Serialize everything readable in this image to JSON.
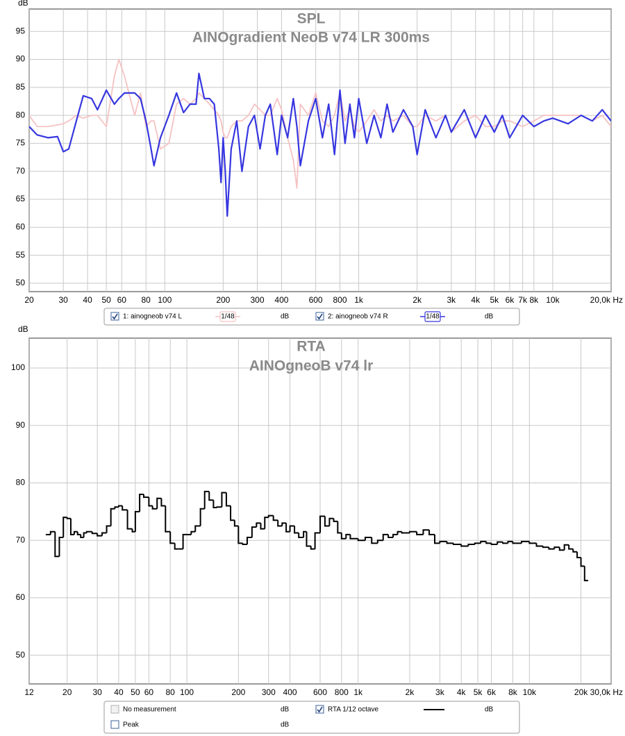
{
  "chart_data": [
    {
      "type": "line",
      "title": "SPL",
      "subtitle": "AINOgradient NeoB v74 LR 300ms",
      "y_label": "dB",
      "unit": "dB",
      "log_x": true,
      "grid": true,
      "xlim": [
        20,
        20000
      ],
      "ylim": [
        48.5,
        99
      ],
      "xticks": [
        20,
        30,
        40,
        50,
        60,
        80,
        100,
        200,
        300,
        400,
        600,
        800,
        {
          "value": 1000,
          "label": "1k"
        },
        {
          "value": 2000,
          "label": "2k"
        },
        {
          "value": 3000,
          "label": "3k"
        },
        {
          "value": 4000,
          "label": "4k"
        },
        {
          "value": 5000,
          "label": "5k"
        },
        {
          "value": 6000,
          "label": "6k"
        },
        {
          "value": 7000,
          "label": "7k"
        },
        {
          "value": 8000,
          "label": "8k"
        },
        {
          "value": 10000,
          "label": "10k"
        },
        {
          "value": 20000,
          "label": "20,0k Hz"
        }
      ],
      "yticks": [
        50,
        55,
        60,
        65,
        70,
        75,
        80,
        85,
        90,
        95
      ],
      "x": [
        20,
        22,
        25,
        28,
        30,
        32,
        35,
        38,
        42,
        45,
        50,
        55,
        58,
        62,
        70,
        75,
        80,
        85,
        88,
        95,
        105,
        115,
        125,
        135,
        145,
        150,
        160,
        170,
        180,
        190,
        195,
        200,
        205,
        210,
        220,
        235,
        250,
        270,
        290,
        310,
        330,
        350,
        380,
        400,
        430,
        460,
        480,
        500,
        550,
        600,
        650,
        700,
        750,
        800,
        850,
        900,
        950,
        1000,
        1100,
        1200,
        1300,
        1400,
        1500,
        1700,
        1900,
        2000,
        2200,
        2500,
        2800,
        3000,
        3500,
        4000,
        4500,
        5000,
        5500,
        6000,
        7000,
        8000,
        9000,
        10000,
        12000,
        14000,
        16000,
        18000,
        20000
      ],
      "series": [
        {
          "name": "1: ainogneob v74 L",
          "smoothing": "1/48",
          "color": "#f6c2c2",
          "values": [
            80,
            78,
            78,
            78.3,
            78.5,
            79,
            80,
            79.5,
            80,
            80,
            78,
            87,
            90,
            87,
            80,
            84,
            78,
            79,
            79,
            74,
            75,
            82,
            83,
            82,
            83,
            84,
            83,
            82,
            81,
            80,
            79,
            77,
            76,
            76,
            78,
            79,
            79,
            80,
            82,
            81,
            80,
            80,
            83,
            81,
            76,
            72,
            67,
            82,
            80,
            84,
            79,
            78,
            80,
            84,
            79,
            81,
            78,
            77,
            79,
            81,
            79,
            80,
            79,
            80,
            78,
            78,
            80,
            79,
            80,
            77,
            79,
            80,
            78,
            78,
            79,
            79,
            78,
            79,
            80,
            80,
            80,
            80,
            79,
            80,
            78
          ]
        },
        {
          "name": "2: ainogneob v74 R",
          "smoothing": "1/48",
          "color": "#3636e0",
          "values": [
            78,
            76.5,
            76,
            76.2,
            73.5,
            74,
            79,
            83.5,
            83,
            81,
            84.5,
            82,
            83,
            84,
            84,
            83,
            79,
            74,
            71,
            76,
            80,
            84,
            80.5,
            82,
            82,
            87.5,
            83,
            83,
            82,
            74,
            68,
            76,
            70,
            62,
            74,
            79,
            70,
            78,
            80,
            74,
            80,
            82,
            73,
            80,
            76,
            83,
            78,
            71,
            79,
            83,
            76,
            82,
            73,
            84.5,
            75,
            82,
            76,
            83,
            75,
            80,
            76,
            82,
            77,
            81,
            78,
            73,
            81,
            76,
            80,
            77,
            81,
            76,
            80,
            77,
            80,
            76,
            80,
            78,
            79,
            79.5,
            78.5,
            80,
            79,
            81,
            79
          ]
        }
      ]
    },
    {
      "type": "step",
      "title": "RTA",
      "subtitle": "AINOgneoB v74 lr",
      "y_label": "dB",
      "unit": "dB",
      "log_x": true,
      "grid": true,
      "xlim": [
        12,
        30000
      ],
      "ylim": [
        45,
        105.2
      ],
      "xticks": [
        12,
        20,
        30,
        40,
        50,
        60,
        80,
        100,
        200,
        300,
        400,
        600,
        800,
        {
          "value": 1000,
          "label": "1k"
        },
        {
          "value": 2000,
          "label": "2k"
        },
        {
          "value": 3000,
          "label": "3k"
        },
        {
          "value": 4000,
          "label": "4k"
        },
        {
          "value": 5000,
          "label": "5k"
        },
        {
          "value": 6000,
          "label": "6k"
        },
        {
          "value": 8000,
          "label": "8k"
        },
        {
          "value": 10000,
          "label": "10k"
        },
        {
          "value": 20000,
          "label": "20k"
        },
        {
          "value": 30000,
          "label": "30,0k Hz"
        }
      ],
      "yticks": [
        50,
        60,
        70,
        80,
        90,
        100
      ],
      "x": [
        15,
        16,
        17,
        18,
        19,
        20,
        21,
        22,
        23,
        24,
        25,
        26,
        28,
        30,
        32,
        34,
        36,
        38,
        40,
        42,
        45,
        48,
        50,
        53,
        56,
        60,
        63,
        67,
        71,
        75,
        80,
        85,
        90,
        95,
        100,
        106,
        112,
        120,
        127,
        135,
        143,
        150,
        160,
        170,
        180,
        190,
        200,
        212,
        225,
        240,
        255,
        270,
        285,
        300,
        320,
        340,
        360,
        380,
        400,
        425,
        450,
        480,
        500,
        530,
        560,
        600,
        640,
        680,
        720,
        760,
        800,
        850,
        900,
        1000,
        1100,
        1200,
        1300,
        1400,
        1500,
        1600,
        1700,
        1800,
        2000,
        2200,
        2400,
        2600,
        2800,
        3000,
        3300,
        3600,
        4000,
        4400,
        4800,
        5200,
        5600,
        6000,
        6500,
        7000,
        7500,
        8000,
        9000,
        10000,
        11000,
        12000,
        13000,
        14000,
        15000,
        16000,
        17000,
        18000,
        19000,
        20000,
        21000
      ],
      "series": [
        {
          "name": "RTA 1/12 octave",
          "color": "#000000",
          "values": [
            71,
            71.5,
            67.2,
            70.5,
            74,
            73.8,
            71,
            71.5,
            71,
            70.5,
            71.3,
            71.5,
            71.2,
            70.8,
            71.3,
            72.5,
            75.5,
            75.8,
            76,
            75.3,
            72,
            71.5,
            75,
            78,
            77.5,
            76,
            75.5,
            77.3,
            76,
            71.5,
            69.5,
            68.5,
            68.5,
            71,
            71,
            71.5,
            72.5,
            75.5,
            78.5,
            77,
            75.7,
            75.8,
            78.3,
            76,
            73.5,
            72.5,
            69.5,
            69.3,
            70.5,
            72.3,
            73,
            72,
            74,
            74.3,
            73.5,
            72.5,
            73,
            71.5,
            72.5,
            71.3,
            70.5,
            71.5,
            69,
            68.5,
            71.3,
            74.2,
            72.5,
            73.8,
            73.3,
            71.3,
            70.3,
            71,
            70.3,
            70,
            70.5,
            69.5,
            70,
            71,
            70.5,
            71,
            71.5,
            71.3,
            71.5,
            71,
            71.8,
            71,
            69.5,
            69.8,
            69.5,
            69.3,
            69,
            69.3,
            69.5,
            69.8,
            69.5,
            69.3,
            69.7,
            69.5,
            69.8,
            69.5,
            69.8,
            69.5,
            69,
            68.8,
            68.5,
            68.8,
            68.3,
            69.2,
            68.5,
            68,
            67,
            65.5,
            63
          ]
        }
      ],
      "inactive_legend": [
        {
          "name": "No measurement",
          "unit": "dB"
        },
        {
          "name": "Peak",
          "unit": "dB"
        }
      ]
    }
  ]
}
